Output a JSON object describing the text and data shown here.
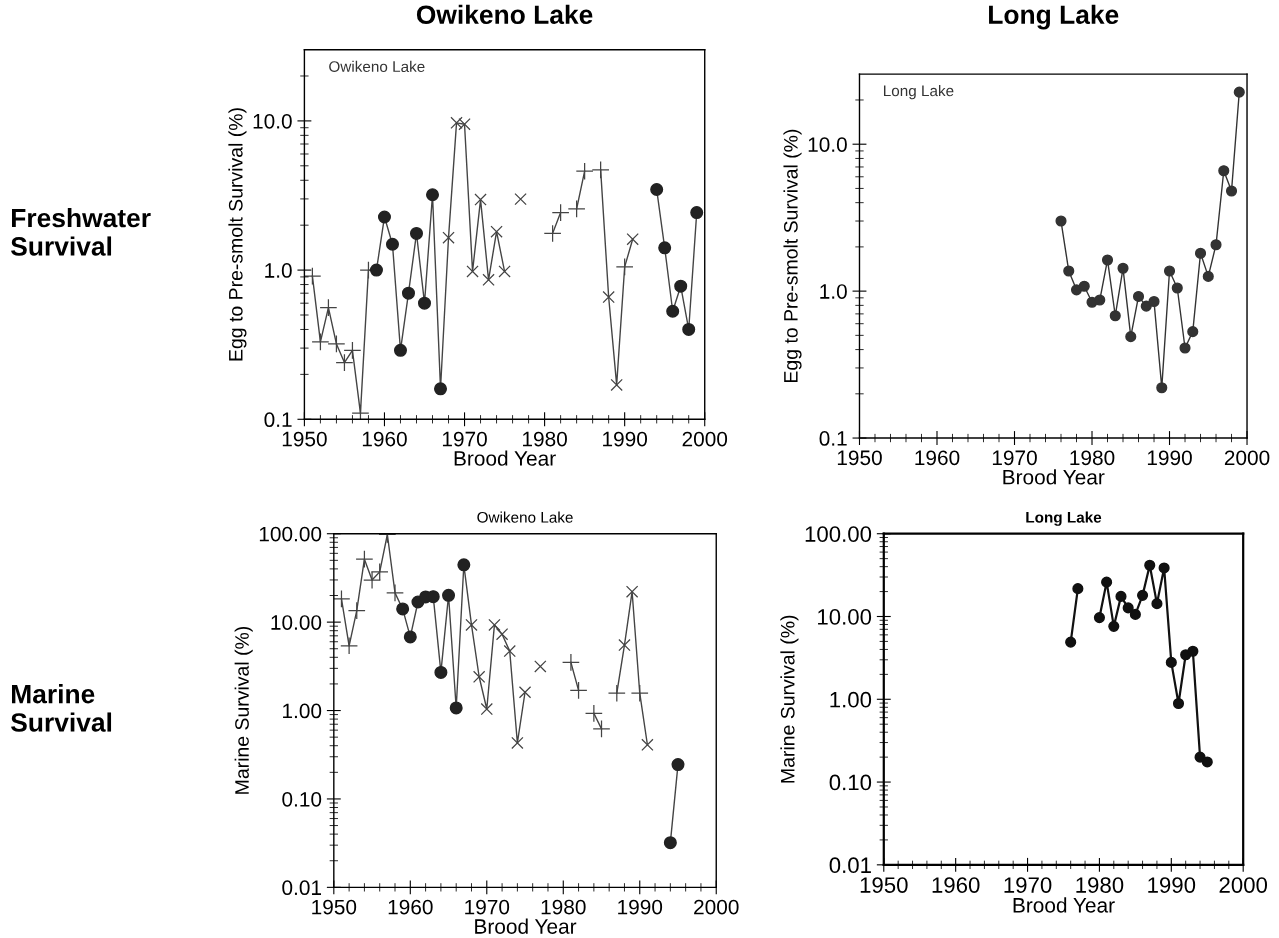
{
  "chart_data": [
    {
      "type": "line",
      "title": "Owikeno Lake",
      "ylabel": "Egg to Pre-smolt Survival (%)",
      "xlabel": "Brood Year",
      "annotations": [
        "Owikeno Lake",
        "Freshwater Survival"
      ],
      "log": "y",
      "xlim": [
        1950,
        2000
      ],
      "xticks": [
        1950,
        {
          "value": 1952,
          "label": null
        },
        {
          "value": 1954,
          "label": null
        },
        {
          "value": 1956,
          "label": null
        },
        {
          "value": 1958,
          "label": null
        },
        1960,
        {
          "value": 1962,
          "label": null
        },
        {
          "value": 1964,
          "label": null
        },
        {
          "value": 1966,
          "label": null
        },
        {
          "value": 1968,
          "label": null
        },
        1970,
        {
          "value": 1972,
          "label": null
        },
        {
          "value": 1974,
          "label": null
        },
        {
          "value": 1976,
          "label": null
        },
        {
          "value": 1978,
          "label": null
        },
        1980,
        {
          "value": 1982,
          "label": null
        },
        {
          "value": 1984,
          "label": null
        },
        {
          "value": 1986,
          "label": null
        },
        {
          "value": 1988,
          "label": null
        },
        1990,
        {
          "value": 1992,
          "label": null
        },
        {
          "value": 1994,
          "label": null
        },
        {
          "value": 1996,
          "label": null
        },
        {
          "value": 1998,
          "label": null
        },
        2000
      ],
      "ylim": [
        0.1,
        30
      ],
      "yticks": [
        {
          "value": 0.1,
          "label": "0.1"
        },
        {
          "value": 0.2,
          "label": null
        },
        {
          "value": 0.3,
          "label": null
        },
        {
          "value": 0.4,
          "label": null
        },
        {
          "value": 0.5,
          "label": null
        },
        {
          "value": 0.6,
          "label": null
        },
        {
          "value": 0.7,
          "label": null
        },
        {
          "value": 0.8,
          "label": null
        },
        {
          "value": 0.9,
          "label": null
        },
        {
          "value": 1,
          "label": "1.0"
        },
        {
          "value": 2,
          "label": null
        },
        {
          "value": 3,
          "label": null
        },
        {
          "value": 4,
          "label": null
        },
        {
          "value": 5,
          "label": null
        },
        {
          "value": 6,
          "label": null
        },
        {
          "value": 7,
          "label": null
        },
        {
          "value": 8,
          "label": null
        },
        {
          "value": 9,
          "label": null
        },
        {
          "value": 10,
          "label": "10.0"
        },
        {
          "value": 20,
          "label": null
        }
      ],
      "series": [
        {
          "marker": "none",
          "color": "#444444",
          "x": [
            1951,
            1952,
            1953,
            1954,
            1955,
            1956,
            1957,
            1958,
            1959,
            1960,
            1961,
            1962,
            1963,
            1964,
            1965,
            1966,
            1967,
            1968,
            1969,
            1970,
            1971,
            1972,
            1973,
            1974,
            1975,
            1976,
            1977,
            1978,
            1979,
            1980,
            1981,
            1982,
            1983,
            1984,
            1985,
            1986,
            1987,
            1988,
            1989,
            1990,
            1991,
            1992,
            1993,
            1994,
            1995,
            1996,
            1997,
            1998,
            1999
          ],
          "values": [
            0.91,
            0.33,
            0.56,
            0.32,
            0.24,
            0.29,
            0.11,
            1.0,
            1.0,
            2.27,
            1.49,
            0.29,
            0.7,
            1.76,
            0.6,
            3.2,
            0.16,
            1.65,
            9.7,
            9.5,
            0.98,
            2.97,
            0.86,
            1.81,
            0.98,
            null,
            null,
            null,
            null,
            null,
            1.76,
            2.43,
            null,
            2.57,
            4.6,
            null,
            4.7,
            0.66,
            0.17,
            1.05,
            1.61,
            null,
            null,
            3.47,
            1.41,
            0.53,
            0.78,
            0.4,
            2.43
          ]
        },
        {
          "type": "scatter",
          "marker": "plus",
          "color": "#444444",
          "x": [
            1951,
            1952,
            1953,
            1954,
            1955,
            1956,
            1957,
            1958,
            1981,
            1982,
            1984,
            1985,
            1987,
            1990
          ],
          "values": [
            0.91,
            0.33,
            0.56,
            0.32,
            0.24,
            0.29,
            0.11,
            1.0,
            1.76,
            2.43,
            2.57,
            4.6,
            4.7,
            1.05
          ]
        },
        {
          "type": "scatter",
          "marker": "cross",
          "color": "#444444",
          "x": [
            1968,
            1969,
            1970,
            1971,
            1972,
            1973,
            1974,
            1975,
            1977,
            1988,
            1989,
            1991
          ],
          "values": [
            1.65,
            9.7,
            9.5,
            0.98,
            2.97,
            0.86,
            1.81,
            0.98,
            2.99,
            0.66,
            0.17,
            1.61
          ]
        },
        {
          "type": "scatter",
          "marker": "circle",
          "color": "#222222",
          "x": [
            1959,
            1960,
            1961,
            1962,
            1963,
            1964,
            1965,
            1966,
            1967,
            1994,
            1995,
            1996,
            1997,
            1998,
            1999
          ],
          "values": [
            1.0,
            2.27,
            1.49,
            0.29,
            0.7,
            1.76,
            0.6,
            3.2,
            0.16,
            3.47,
            1.41,
            0.53,
            0.78,
            0.4,
            2.43
          ]
        }
      ]
    },
    {
      "type": "line",
      "title": "Long Lake",
      "ylabel": "Egg to Pre-smolt Survival (%)",
      "xlabel": "Brood Year",
      "annotations": [
        "Long Lake"
      ],
      "log": "y",
      "xlim": [
        1950,
        2000
      ],
      "xticks": [
        1950,
        {
          "value": 1952,
          "label": null
        },
        {
          "value": 1954,
          "label": null
        },
        {
          "value": 1956,
          "label": null
        },
        {
          "value": 1958,
          "label": null
        },
        1960,
        {
          "value": 1962,
          "label": null
        },
        {
          "value": 1964,
          "label": null
        },
        {
          "value": 1966,
          "label": null
        },
        {
          "value": 1968,
          "label": null
        },
        1970,
        {
          "value": 1972,
          "label": null
        },
        {
          "value": 1974,
          "label": null
        },
        {
          "value": 1976,
          "label": null
        },
        {
          "value": 1978,
          "label": null
        },
        1980,
        {
          "value": 1982,
          "label": null
        },
        {
          "value": 1984,
          "label": null
        },
        {
          "value": 1986,
          "label": null
        },
        {
          "value": 1988,
          "label": null
        },
        1990,
        {
          "value": 1992,
          "label": null
        },
        {
          "value": 1994,
          "label": null
        },
        {
          "value": 1996,
          "label": null
        },
        {
          "value": 1998,
          "label": null
        },
        2000
      ],
      "ylim": [
        0.1,
        30
      ],
      "yticks": [
        {
          "value": 0.1,
          "label": "0.1"
        },
        {
          "value": 0.2,
          "label": null
        },
        {
          "value": 0.3,
          "label": null
        },
        {
          "value": 0.4,
          "label": null
        },
        {
          "value": 0.5,
          "label": null
        },
        {
          "value": 0.6,
          "label": null
        },
        {
          "value": 0.7,
          "label": null
        },
        {
          "value": 0.8,
          "label": null
        },
        {
          "value": 0.9,
          "label": null
        },
        {
          "value": 1,
          "label": "1.0"
        },
        {
          "value": 2,
          "label": null
        },
        {
          "value": 3,
          "label": null
        },
        {
          "value": 4,
          "label": null
        },
        {
          "value": 5,
          "label": null
        },
        {
          "value": 6,
          "label": null
        },
        {
          "value": 7,
          "label": null
        },
        {
          "value": 8,
          "label": null
        },
        {
          "value": 9,
          "label": null
        },
        {
          "value": 10,
          "label": "10.0"
        },
        {
          "value": 20,
          "label": null
        }
      ],
      "series": [
        {
          "marker": "circle",
          "color": "#333333",
          "x": [
            1976,
            1977,
            1978,
            1979,
            1980,
            1981,
            1982,
            1983,
            1984,
            1985,
            1986,
            1987,
            1988,
            1989,
            1990,
            1991,
            1992,
            1993,
            1994,
            1995,
            1996,
            1997,
            1998,
            1999
          ],
          "values": [
            3.0,
            1.37,
            1.02,
            1.08,
            0.84,
            0.87,
            1.63,
            0.68,
            1.43,
            0.49,
            0.92,
            0.79,
            0.85,
            0.22,
            1.37,
            1.05,
            0.41,
            0.53,
            1.81,
            1.26,
            2.07,
            6.6,
            4.8,
            22.6
          ]
        }
      ]
    },
    {
      "type": "line",
      "title": "Owikeno Lake",
      "ylabel": "Marine Survival (%)",
      "xlabel": "Brood Year",
      "annotations": [
        "Marine Survival"
      ],
      "log": "y",
      "xlim": [
        1950,
        2000
      ],
      "xticks": [
        1950,
        {
          "value": 1952,
          "label": null
        },
        {
          "value": 1954,
          "label": null
        },
        {
          "value": 1956,
          "label": null
        },
        {
          "value": 1958,
          "label": null
        },
        1960,
        {
          "value": 1962,
          "label": null
        },
        {
          "value": 1964,
          "label": null
        },
        {
          "value": 1966,
          "label": null
        },
        {
          "value": 1968,
          "label": null
        },
        1970,
        {
          "value": 1972,
          "label": null
        },
        {
          "value": 1974,
          "label": null
        },
        {
          "value": 1976,
          "label": null
        },
        {
          "value": 1978,
          "label": null
        },
        1980,
        {
          "value": 1982,
          "label": null
        },
        {
          "value": 1984,
          "label": null
        },
        {
          "value": 1986,
          "label": null
        },
        {
          "value": 1988,
          "label": null
        },
        1990,
        {
          "value": 1992,
          "label": null
        },
        {
          "value": 1994,
          "label": null
        },
        {
          "value": 1996,
          "label": null
        },
        {
          "value": 1998,
          "label": null
        },
        2000
      ],
      "ylim": [
        0.01,
        100
      ],
      "yticks": [
        {
          "value": 0.01,
          "label": "0.01"
        },
        {
          "value": 0.02,
          "label": null
        },
        {
          "value": 0.03,
          "label": null
        },
        {
          "value": 0.04,
          "label": null
        },
        {
          "value": 0.05,
          "label": null
        },
        {
          "value": 0.06,
          "label": null
        },
        {
          "value": 0.07,
          "label": null
        },
        {
          "value": 0.08,
          "label": null
        },
        {
          "value": 0.09,
          "label": null
        },
        {
          "value": 0.1,
          "label": "0.10"
        },
        {
          "value": 0.2,
          "label": null
        },
        {
          "value": 0.3,
          "label": null
        },
        {
          "value": 0.4,
          "label": null
        },
        {
          "value": 0.5,
          "label": null
        },
        {
          "value": 0.6,
          "label": null
        },
        {
          "value": 0.7,
          "label": null
        },
        {
          "value": 0.8,
          "label": null
        },
        {
          "value": 0.9,
          "label": null
        },
        {
          "value": 1,
          "label": "1.00"
        },
        {
          "value": 2,
          "label": null
        },
        {
          "value": 3,
          "label": null
        },
        {
          "value": 4,
          "label": null
        },
        {
          "value": 5,
          "label": null
        },
        {
          "value": 6,
          "label": null
        },
        {
          "value": 7,
          "label": null
        },
        {
          "value": 8,
          "label": null
        },
        {
          "value": 9,
          "label": null
        },
        {
          "value": 10,
          "label": "10.00"
        },
        {
          "value": 20,
          "label": null
        },
        {
          "value": 30,
          "label": null
        },
        {
          "value": 40,
          "label": null
        },
        {
          "value": 50,
          "label": null
        },
        {
          "value": 60,
          "label": null
        },
        {
          "value": 70,
          "label": null
        },
        {
          "value": 80,
          "label": null
        },
        {
          "value": 90,
          "label": null
        },
        {
          "value": 100,
          "label": "100.00"
        }
      ],
      "series": [
        {
          "marker": "none",
          "color": "#444444",
          "x": [
            1951,
            1952,
            1953,
            1954,
            1955,
            1956,
            1957,
            1958,
            1959,
            1960,
            1961,
            1962,
            1963,
            1964,
            1965,
            1966,
            1967,
            1968,
            1969,
            1970,
            1971,
            1972,
            1973,
            1974,
            1975,
            1976,
            1977,
            1978,
            1979,
            1980,
            1981,
            1982,
            1983,
            1984,
            1985,
            1986,
            1987,
            1988,
            1989,
            1990,
            1991,
            1992,
            1993,
            1994,
            1995
          ],
          "values": [
            18.3,
            5.4,
            13.5,
            51.5,
            29.9,
            37,
            98,
            21.4,
            14.1,
            6.8,
            16.9,
            19.3,
            19.4,
            2.7,
            20.1,
            1.07,
            44.5,
            9.3,
            2.41,
            1.04,
            9.3,
            7.3,
            4.7,
            0.43,
            1.61,
            null,
            null,
            null,
            null,
            null,
            3.5,
            1.69,
            null,
            0.93,
            0.62,
            null,
            1.57,
            5.5,
            22.1,
            1.57,
            0.41,
            null,
            null,
            0.032,
            0.245
          ]
        },
        {
          "type": "scatter",
          "marker": "plus",
          "color": "#444444",
          "x": [
            1951,
            1952,
            1953,
            1954,
            1955,
            1956,
            1957,
            1958,
            1981,
            1982,
            1984,
            1985,
            1987,
            1990
          ],
          "values": [
            18.3,
            5.4,
            13.5,
            51.5,
            29.9,
            37,
            98,
            21.4,
            3.5,
            1.69,
            0.93,
            0.62,
            1.57,
            1.57
          ]
        },
        {
          "type": "scatter",
          "marker": "cross",
          "color": "#444444",
          "x": [
            1968,
            1969,
            1970,
            1971,
            1972,
            1973,
            1974,
            1975,
            1977,
            1988,
            1989,
            1991
          ],
          "values": [
            9.3,
            2.41,
            1.04,
            9.3,
            7.3,
            4.7,
            0.43,
            1.61,
            3.15,
            5.5,
            22.1,
            0.41
          ]
        },
        {
          "type": "scatter",
          "marker": "circle",
          "color": "#222222",
          "x": [
            1959,
            1960,
            1961,
            1962,
            1963,
            1964,
            1965,
            1966,
            1967,
            1994,
            1995
          ],
          "values": [
            14.1,
            6.8,
            16.9,
            19.3,
            19.4,
            2.7,
            20.1,
            1.07,
            44.5,
            0.032,
            0.245
          ]
        }
      ]
    },
    {
      "type": "line",
      "title": "Long Lake",
      "ylabel": "Marine Survival (%)",
      "xlabel": "Brood Year",
      "log": "y",
      "xlim": [
        1950,
        2000
      ],
      "xticks": [
        1950,
        {
          "value": 1952,
          "label": null
        },
        {
          "value": 1954,
          "label": null
        },
        {
          "value": 1956,
          "label": null
        },
        {
          "value": 1958,
          "label": null
        },
        1960,
        {
          "value": 1962,
          "label": null
        },
        {
          "value": 1964,
          "label": null
        },
        {
          "value": 1966,
          "label": null
        },
        {
          "value": 1968,
          "label": null
        },
        1970,
        {
          "value": 1972,
          "label": null
        },
        {
          "value": 1974,
          "label": null
        },
        {
          "value": 1976,
          "label": null
        },
        {
          "value": 1978,
          "label": null
        },
        1980,
        {
          "value": 1982,
          "label": null
        },
        {
          "value": 1984,
          "label": null
        },
        {
          "value": 1986,
          "label": null
        },
        {
          "value": 1988,
          "label": null
        },
        1990,
        {
          "value": 1992,
          "label": null
        },
        {
          "value": 1994,
          "label": null
        },
        {
          "value": 1996,
          "label": null
        },
        {
          "value": 1998,
          "label": null
        },
        2000
      ],
      "ylim": [
        0.01,
        100
      ],
      "yticks": [
        {
          "value": 0.01,
          "label": "0.01"
        },
        {
          "value": 0.02,
          "label": null
        },
        {
          "value": 0.03,
          "label": null
        },
        {
          "value": 0.04,
          "label": null
        },
        {
          "value": 0.05,
          "label": null
        },
        {
          "value": 0.06,
          "label": null
        },
        {
          "value": 0.07,
          "label": null
        },
        {
          "value": 0.08,
          "label": null
        },
        {
          "value": 0.09,
          "label": null
        },
        {
          "value": 0.1,
          "label": "0.10"
        },
        {
          "value": 0.2,
          "label": null
        },
        {
          "value": 0.3,
          "label": null
        },
        {
          "value": 0.4,
          "label": null
        },
        {
          "value": 0.5,
          "label": null
        },
        {
          "value": 0.6,
          "label": null
        },
        {
          "value": 0.7,
          "label": null
        },
        {
          "value": 0.8,
          "label": null
        },
        {
          "value": 0.9,
          "label": null
        },
        {
          "value": 1,
          "label": "1.00"
        },
        {
          "value": 2,
          "label": null
        },
        {
          "value": 3,
          "label": null
        },
        {
          "value": 4,
          "label": null
        },
        {
          "value": 5,
          "label": null
        },
        {
          "value": 6,
          "label": null
        },
        {
          "value": 7,
          "label": null
        },
        {
          "value": 8,
          "label": null
        },
        {
          "value": 9,
          "label": null
        },
        {
          "value": 10,
          "label": "10.00"
        },
        {
          "value": 20,
          "label": null
        },
        {
          "value": 30,
          "label": null
        },
        {
          "value": 40,
          "label": null
        },
        {
          "value": 50,
          "label": null
        },
        {
          "value": 60,
          "label": null
        },
        {
          "value": 70,
          "label": null
        },
        {
          "value": 80,
          "label": null
        },
        {
          "value": 90,
          "label": null
        },
        {
          "value": 100,
          "label": "100.00"
        }
      ],
      "series": [
        {
          "marker": "circle",
          "color": "#111111",
          "x": [
            1976,
            1977,
            1978,
            1979,
            1980,
            1981,
            1982,
            1983,
            1984,
            1985,
            1986,
            1987,
            1988,
            1989,
            1990,
            1991,
            1992,
            1993,
            1994,
            1995
          ],
          "values": [
            4.9,
            21.7,
            null,
            null,
            9.7,
            26,
            7.6,
            17.5,
            12.7,
            10.6,
            18.0,
            41.6,
            14.3,
            38.6,
            2.79,
            0.89,
            3.45,
            3.8,
            0.2,
            0.175
          ]
        }
      ]
    }
  ]
}
